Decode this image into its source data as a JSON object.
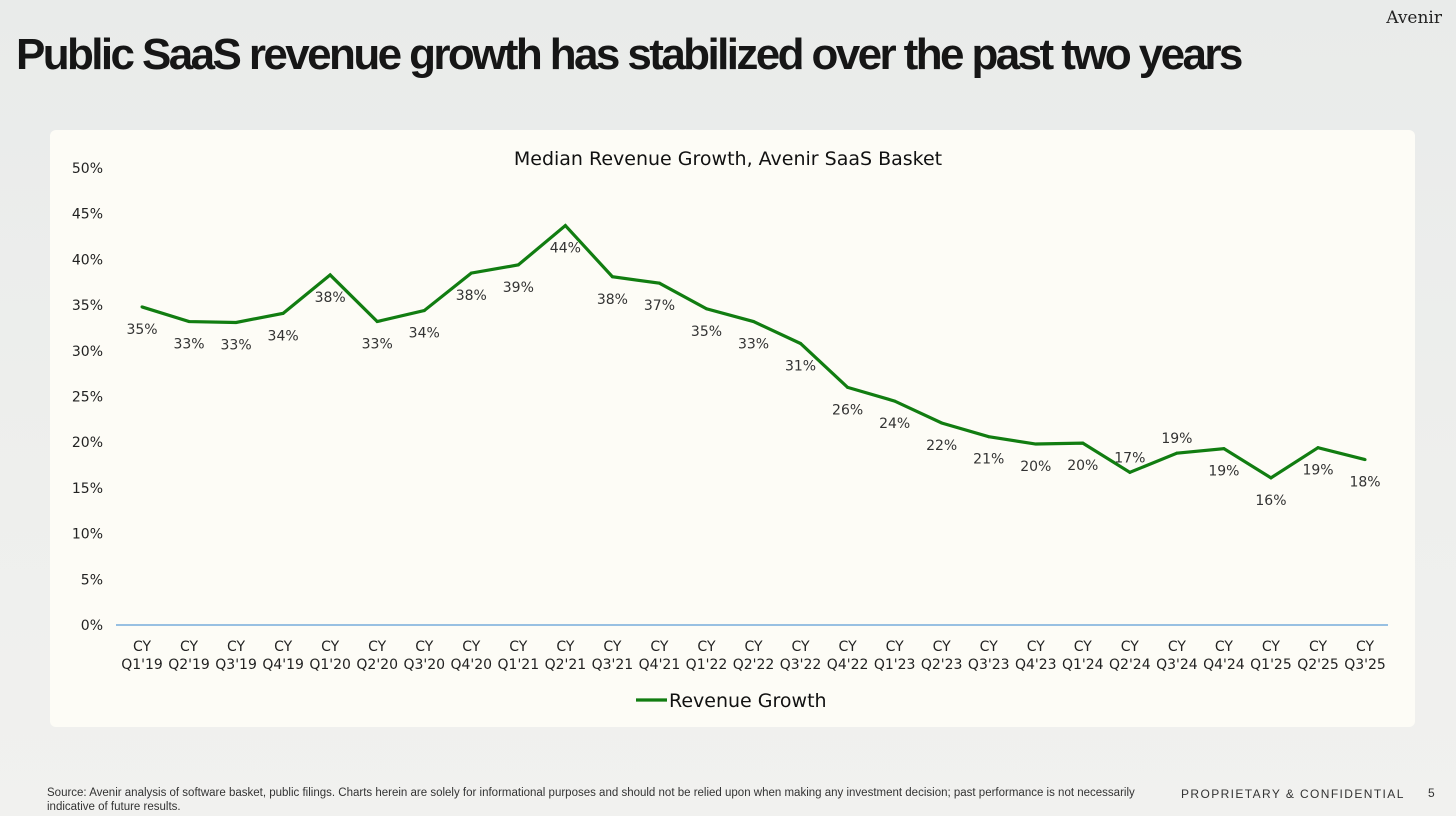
{
  "brand": "Avenir",
  "headline": "Public SaaS revenue growth has stabilized over the past two years",
  "footer": {
    "source_note": "Source: Avenir analysis of software basket, public filings. Charts herein are solely for informational purposes and should not be relied upon when making any investment decision; past performance is not necessarily indicative of future results.",
    "confidential": "PROPRIETARY & CONFIDENTIAL",
    "page_number": "5"
  },
  "colors": {
    "line": "#117d11",
    "axis": "#5b9bd5"
  },
  "chart_data": {
    "type": "line",
    "title": "Median Revenue Growth, Avenir SaaS Basket",
    "xlabel": "",
    "ylabel": "",
    "ylim": [
      0,
      50
    ],
    "yticks": [
      "0%",
      "5%",
      "10%",
      "15%",
      "20%",
      "25%",
      "30%",
      "35%",
      "40%",
      "45%",
      "50%"
    ],
    "grid": false,
    "legend_position": "bottom-center",
    "categories": [
      "CY Q1'19",
      "CY Q2'19",
      "CY Q3'19",
      "CY Q4'19",
      "CY Q1'20",
      "CY Q2'20",
      "CY Q3'20",
      "CY Q4'20",
      "CY Q1'21",
      "CY Q2'21",
      "CY Q3'21",
      "CY Q4'21",
      "CY Q1'22",
      "CY Q2'22",
      "CY Q3'22",
      "CY Q4'22",
      "CY Q1'23",
      "CY Q2'23",
      "CY Q3'23",
      "CY Q4'23",
      "CY Q1'24",
      "CY Q2'24",
      "CY Q3'24",
      "CY Q4'24",
      "CY Q1'25",
      "CY Q2'25",
      "CY Q3'25"
    ],
    "series": [
      {
        "name": "Revenue Growth",
        "values": [
          34.8,
          33.2,
          33.1,
          34.1,
          38.3,
          33.2,
          34.4,
          38.5,
          39.4,
          43.7,
          38.1,
          37.4,
          34.6,
          33.2,
          30.8,
          26.0,
          24.5,
          22.1,
          20.6,
          19.8,
          19.9,
          16.7,
          18.8,
          19.3,
          16.1,
          19.4,
          18.1
        ],
        "data_labels": [
          "35%",
          "33%",
          "33%",
          "34%",
          "38%",
          "33%",
          "34%",
          "38%",
          "39%",
          "44%",
          "38%",
          "37%",
          "35%",
          "33%",
          "31%",
          "26%",
          "24%",
          "22%",
          "21%",
          "20%",
          "20%",
          "17%",
          "19%",
          "19%",
          "16%",
          "19%",
          "18%"
        ],
        "label_positions": [
          "below",
          "below",
          "below",
          "below",
          "below",
          "below",
          "below",
          "below",
          "below",
          "below",
          "below",
          "below",
          "below",
          "below",
          "below",
          "below",
          "below",
          "below",
          "below",
          "below",
          "below",
          "above",
          "above",
          "below",
          "below",
          "below",
          "below"
        ]
      }
    ]
  }
}
